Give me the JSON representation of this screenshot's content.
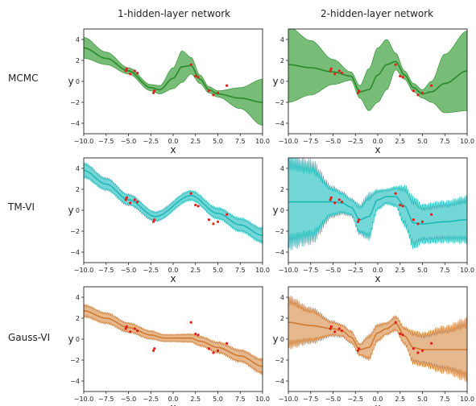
{
  "figure": {
    "columns": [
      "1-hidden-layer network",
      "2-hidden-layer network"
    ],
    "rows": [
      "MCMC",
      "TM-VI",
      "Gauss-VI"
    ]
  },
  "colors": {
    "MCMC": "#2a8a2a",
    "MCMC_band": "#5fb05f",
    "TM-VI": "#1fb8b8",
    "TM-VI_band": "#5ad0d0",
    "Gauss-VI": "#d07a30",
    "Gauss-VI_band": "#e2ab7a",
    "points": "#e0201a"
  },
  "chart_data": [
    {
      "type": "line",
      "row": "MCMC",
      "col": "1-hidden-layer network",
      "xlabel": "x",
      "ylabel": "y",
      "xlim": [
        -10,
        10
      ],
      "ylim": [
        -5,
        5
      ],
      "xticks": [
        "−10.0",
        "−7.5",
        "−5.0",
        "−2.5",
        "0.0",
        "2.5",
        "5.0",
        "7.5",
        "10.0"
      ],
      "yticks": [
        "−4",
        "−2",
        "0",
        "2",
        "4"
      ],
      "mean": {
        "x": [
          -10,
          -7.5,
          -5,
          -2.5,
          -1.5,
          0,
          1,
          2,
          3,
          4,
          5,
          7.5,
          10
        ],
        "y": [
          3.2,
          2.2,
          1.0,
          -0.6,
          -0.8,
          0.3,
          1.4,
          1.5,
          0.2,
          -0.8,
          -1.2,
          -1.6,
          -2.0
        ]
      },
      "band_half_width": {
        "x": [
          -10,
          -7.5,
          -5,
          -2.5,
          -1.5,
          0,
          1,
          2,
          3,
          4,
          5,
          7.5,
          10
        ],
        "y": [
          1.0,
          0.6,
          0.3,
          0.3,
          0.4,
          1.0,
          1.5,
          0.8,
          0.4,
          0.3,
          0.3,
          1.0,
          2.2
        ]
      }
    },
    {
      "type": "line",
      "row": "MCMC",
      "col": "2-hidden-layer network",
      "xlabel": "x",
      "ylabel": "y",
      "xlim": [
        -10,
        10
      ],
      "ylim": [
        -5,
        5
      ],
      "xticks": [
        "−10.0",
        "−7.5",
        "−5.0",
        "−2.5",
        "0.0",
        "2.5",
        "5.0",
        "7.5",
        "10.0"
      ],
      "yticks": [
        "−4",
        "−2",
        "0",
        "2",
        "4"
      ],
      "mean": {
        "x": [
          -10,
          -7.5,
          -5,
          -3,
          -2,
          -1,
          0,
          1,
          2,
          3,
          4,
          5,
          6,
          7.5,
          10
        ],
        "y": [
          1.6,
          1.3,
          0.9,
          0.5,
          -1.0,
          -0.8,
          0.6,
          1.6,
          1.9,
          0.6,
          -0.6,
          -1.2,
          -1.0,
          -0.2,
          1.0
        ]
      },
      "band_half_width": {
        "x": [
          -10,
          -7.5,
          -5,
          -3,
          -2,
          -1,
          0,
          1,
          2,
          3,
          4,
          5,
          6,
          7.5,
          10
        ],
        "y": [
          3.6,
          2.6,
          1.2,
          0.4,
          0.6,
          2.0,
          2.6,
          2.4,
          0.8,
          0.4,
          0.4,
          0.4,
          1.0,
          2.8,
          3.8
        ]
      }
    },
    {
      "type": "line",
      "row": "TM-VI",
      "col": "1-hidden-layer network",
      "xlabel": "x",
      "ylabel": "y",
      "xlim": [
        -10,
        10
      ],
      "ylim": [
        -5,
        5
      ],
      "xticks": [
        "−10.0",
        "−7.5",
        "−5.0",
        "−2.5",
        "0.0",
        "2.5",
        "5.0",
        "7.5",
        "10.0"
      ],
      "yticks": [
        "−4",
        "−2",
        "0",
        "2",
        "4"
      ],
      "mean": {
        "x": [
          -10,
          -7.5,
          -5,
          -2,
          2,
          5,
          7.5,
          10
        ],
        "y": [
          3.8,
          2.5,
          1.0,
          -0.6,
          1.4,
          -0.3,
          -1.4,
          -2.4
        ]
      },
      "band_half_width": {
        "x": [
          -10,
          -7.5,
          -5,
          -2,
          2,
          5,
          7.5,
          10
        ],
        "y": [
          0.6,
          0.5,
          0.45,
          0.4,
          0.4,
          0.45,
          0.55,
          0.6
        ]
      }
    },
    {
      "type": "line",
      "row": "TM-VI",
      "col": "2-hidden-layer network",
      "xlabel": "x",
      "ylabel": "y",
      "xlim": [
        -10,
        10
      ],
      "ylim": [
        -5,
        5
      ],
      "xticks": [
        "−10.0",
        "−7.5",
        "−5.0",
        "−2.5",
        "0.0",
        "2.5",
        "5.0",
        "7.5",
        "10.0"
      ],
      "yticks": [
        "−4",
        "−2",
        "0",
        "2",
        "4"
      ],
      "mean": {
        "x": [
          -10,
          -7.5,
          -5,
          -4,
          -3,
          -2,
          -1,
          0,
          1,
          2,
          3,
          4,
          5,
          7.5,
          10
        ],
        "y": [
          0.8,
          0.8,
          0.8,
          0.7,
          0.3,
          -0.9,
          -0.6,
          1.0,
          1.3,
          1.3,
          0.4,
          -1.2,
          -1.3,
          -1.1,
          -0.9
        ]
      },
      "band_half_width": {
        "x": [
          -10,
          -7.5,
          -5,
          -4,
          -3,
          -2,
          -1,
          0,
          1,
          2,
          3,
          4,
          5,
          7.5,
          10
        ],
        "y": [
          3.6,
          3.2,
          1.2,
          0.9,
          0.7,
          1.2,
          1.8,
          0.8,
          0.6,
          0.8,
          1.6,
          2.0,
          1.5,
          1.6,
          1.8
        ]
      }
    },
    {
      "type": "line",
      "row": "Gauss-VI",
      "col": "1-hidden-layer network",
      "xlabel": "x",
      "ylabel": "y",
      "xlim": [
        -10,
        10
      ],
      "ylim": [
        -5,
        5
      ],
      "xticks": [
        "−10.0",
        "−7.5",
        "−5.0",
        "−2.5",
        "0.0",
        "2.5",
        "5.0",
        "7.5",
        "10.0"
      ],
      "yticks": [
        "−4",
        "−2",
        "0",
        "2",
        "4"
      ],
      "mean": {
        "x": [
          -10,
          -7.5,
          -5,
          -2.5,
          -1,
          0,
          2,
          3,
          5,
          7.5,
          10
        ],
        "y": [
          2.7,
          2.0,
          1.1,
          0.4,
          0.1,
          0.1,
          0.1,
          -0.2,
          -0.8,
          -1.6,
          -2.6
        ]
      },
      "band_half_width": {
        "x": [
          -10,
          -7.5,
          -5,
          -2.5,
          -1,
          0,
          2,
          3,
          5,
          7.5,
          10
        ],
        "y": [
          0.5,
          0.45,
          0.4,
          0.35,
          0.3,
          0.3,
          0.35,
          0.4,
          0.45,
          0.5,
          0.6
        ]
      }
    },
    {
      "type": "line",
      "row": "Gauss-VI",
      "col": "2-hidden-layer network",
      "xlabel": "x",
      "ylabel": "y",
      "xlim": [
        -10,
        10
      ],
      "ylim": [
        -5,
        5
      ],
      "xticks": [
        "−10.0",
        "−7.5",
        "−5.0",
        "−2.5",
        "0.0",
        "2.5",
        "5.0",
        "7.5",
        "10.0"
      ],
      "yticks": [
        "−4",
        "−2",
        "0",
        "2",
        "4"
      ],
      "mean": {
        "x": [
          -10,
          -7.5,
          -5,
          -4,
          -3,
          -2,
          -1,
          0,
          1,
          2,
          3,
          4,
          5,
          7.5,
          10
        ],
        "y": [
          1.6,
          1.3,
          1.0,
          0.8,
          0.2,
          -1.0,
          -0.8,
          0.6,
          1.0,
          1.5,
          0.3,
          -0.8,
          -1.0,
          -1.0,
          -1.0
        ]
      },
      "band_half_width": {
        "x": [
          -10,
          -7.5,
          -5,
          -4,
          -3,
          -2,
          -1,
          0,
          1,
          2,
          3,
          4,
          5,
          7.5,
          10
        ],
        "y": [
          2.0,
          1.4,
          0.6,
          0.5,
          0.5,
          0.5,
          1.0,
          0.7,
          0.5,
          0.6,
          0.7,
          1.3,
          1.3,
          1.8,
          2.4
        ]
      }
    }
  ],
  "observations": {
    "x": [
      -5.3,
      -5.2,
      -4.8,
      -4.3,
      -4.0,
      -2.2,
      -2.1,
      2.0,
      2.5,
      2.8,
      4.0,
      4.5,
      5.0,
      6.0
    ],
    "y": [
      1.0,
      1.2,
      0.7,
      1.0,
      0.8,
      -1.1,
      -0.9,
      1.6,
      0.5,
      0.4,
      -0.9,
      -1.3,
      -1.1,
      -0.4
    ]
  }
}
